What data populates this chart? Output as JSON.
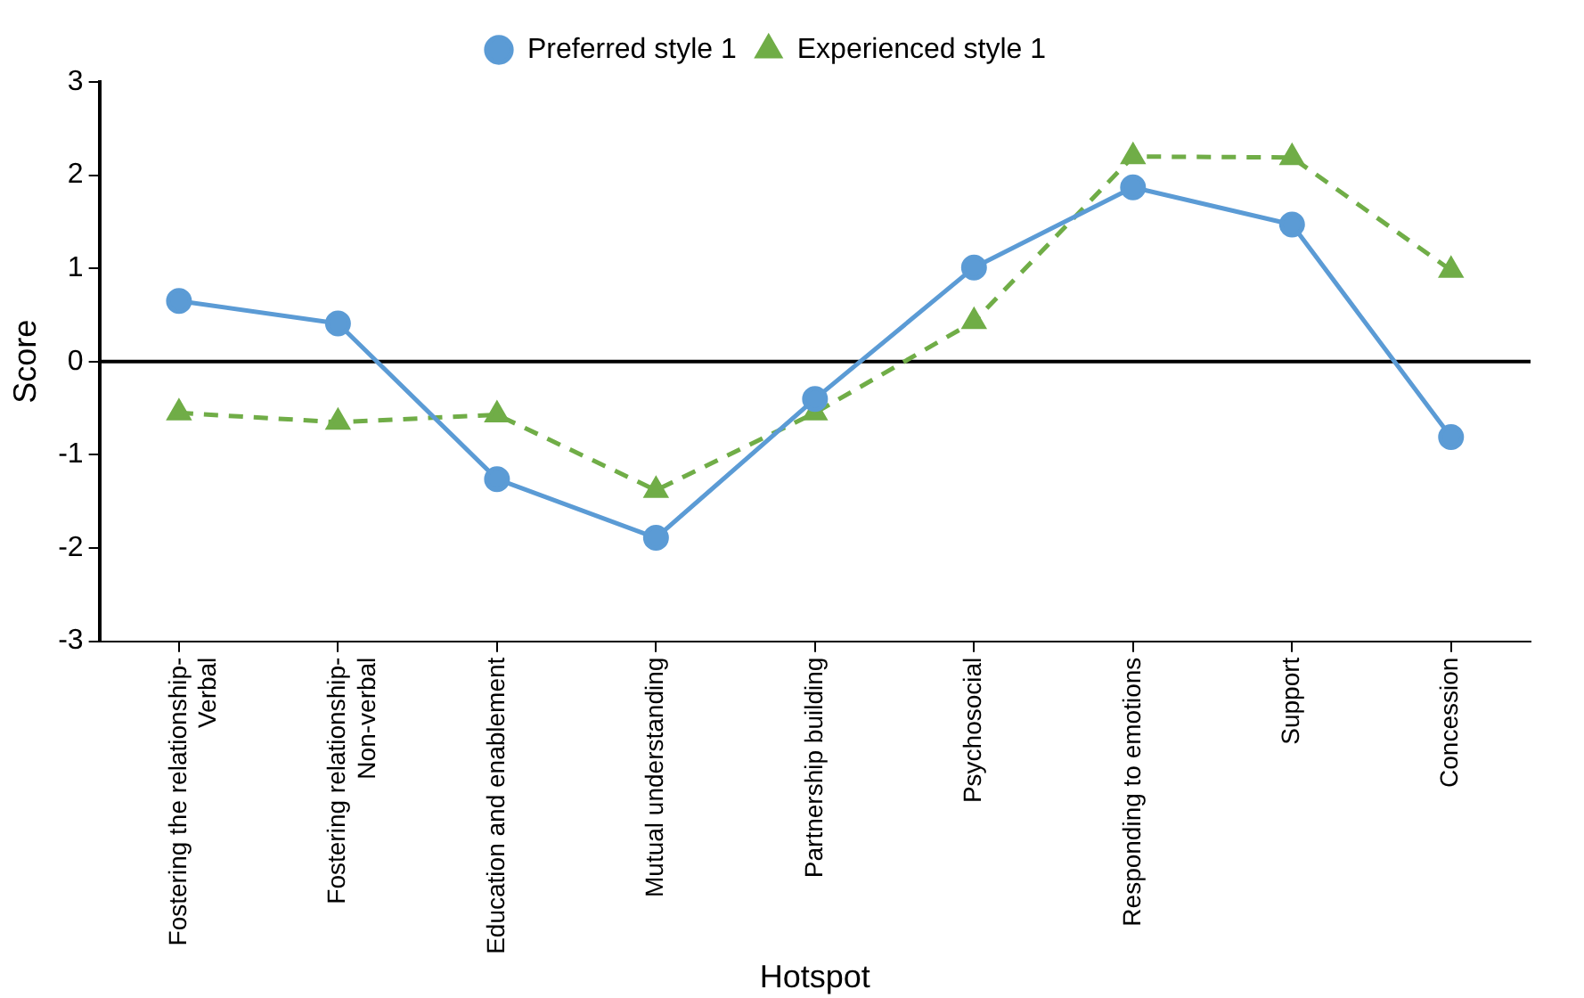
{
  "chart_data": {
    "type": "line",
    "xlabel": "Hotspot",
    "ylabel": "Score",
    "categories": [
      "Fostering the relationship-\nVerbal",
      "Fostering relationship-\nNon-verbal",
      "Education and enablement",
      "Mutual understanding",
      "Partnership building",
      "Psychosocial",
      "Responding to emotions",
      "Support",
      "Concession"
    ],
    "series": [
      {
        "name": "Preferred style 1",
        "color": "#5b9bd5",
        "marker": "circle",
        "line_style": "solid",
        "values": [
          0.65,
          0.41,
          -1.26,
          -1.89,
          -0.4,
          1.01,
          1.87,
          1.47,
          -0.81
        ]
      },
      {
        "name": "Experienced style 1",
        "color": "#70ad47",
        "marker": "triangle",
        "line_style": "dashed",
        "values": [
          -0.55,
          -0.65,
          -0.57,
          -1.38,
          -0.55,
          0.43,
          2.2,
          2.19,
          0.98
        ]
      }
    ],
    "ref_lines": [
      {
        "axis": "y",
        "value": 0,
        "color": "#000000"
      }
    ],
    "ylim": [
      -3,
      3
    ],
    "yticks": [
      -3,
      -2,
      -1,
      0,
      1,
      2,
      3
    ],
    "grid": false,
    "legend": "top"
  }
}
